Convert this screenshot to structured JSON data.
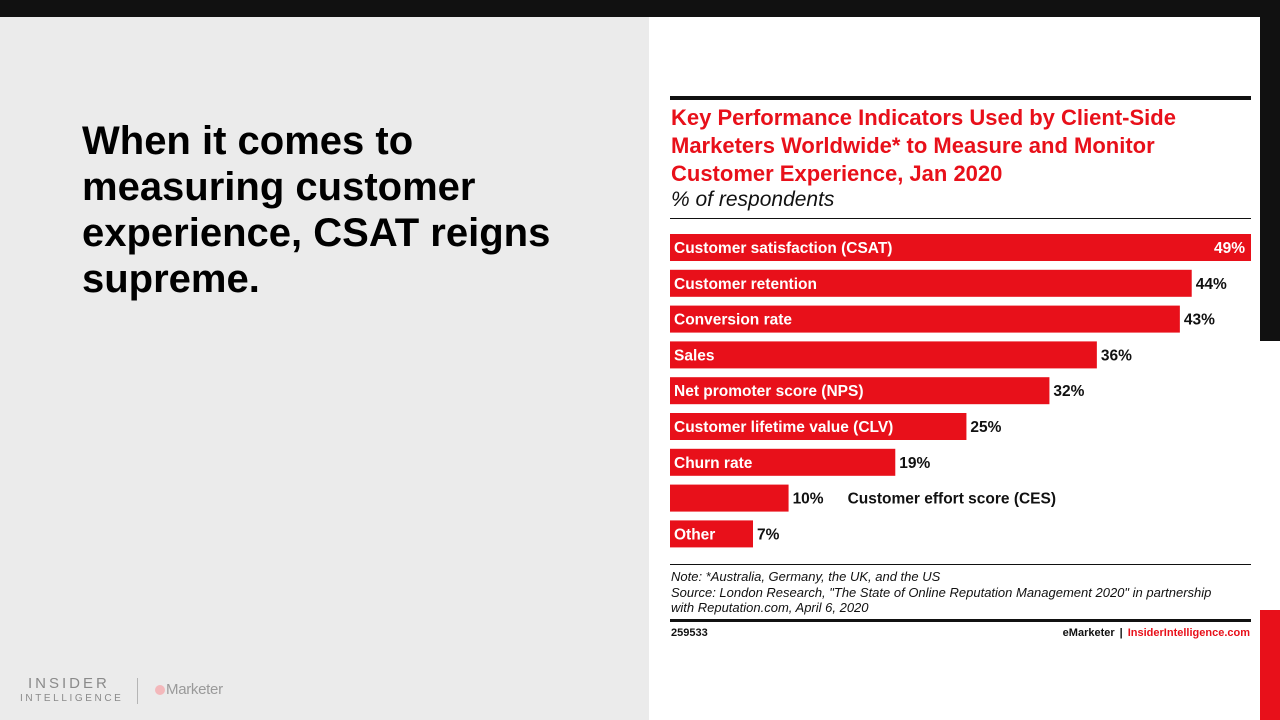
{
  "slide": {
    "headline": "When it comes to measuring customer experience, CSAT reigns supreme."
  },
  "brand": {
    "insider": "INSIDER",
    "intelligence": "INTELLIGENCE",
    "emarketer": "Marketer",
    "emarketer_color": "#9a9a9a"
  },
  "chart_data": {
    "type": "bar",
    "orientation": "horizontal",
    "title": "Key Performance Indicators Used by Client-Side Marketers Worldwide* to Measure and Monitor Customer Experience, Jan 2020",
    "subtitle": "% of respondents",
    "categories": [
      "Customer satisfaction (CSAT)",
      "Customer retention",
      "Conversion rate",
      "Sales",
      "Net promoter score (NPS)",
      "Customer lifetime value (CLV)",
      "Churn rate",
      "Customer effort score (CES)",
      "Other"
    ],
    "values": [
      49,
      44,
      43,
      36,
      32,
      25,
      19,
      10,
      7
    ],
    "value_labels": [
      "49%",
      "44%",
      "43%",
      "36%",
      "32%",
      "25%",
      "19%",
      "10%",
      "7%"
    ],
    "xlim": [
      0,
      49
    ],
    "grid": false,
    "legend": "none",
    "bar_color": "#e8101a",
    "note": "Note: *Australia, Germany, the UK, and the US",
    "source": "Source: London Research, \"The State of Online Reputation Management 2020\" in partnership with Reputation.com, April 6, 2020",
    "chart_id": "259533",
    "credit_left": "eMarketer",
    "credit_sep": "|",
    "credit_right": "InsiderIntelligence.com"
  }
}
